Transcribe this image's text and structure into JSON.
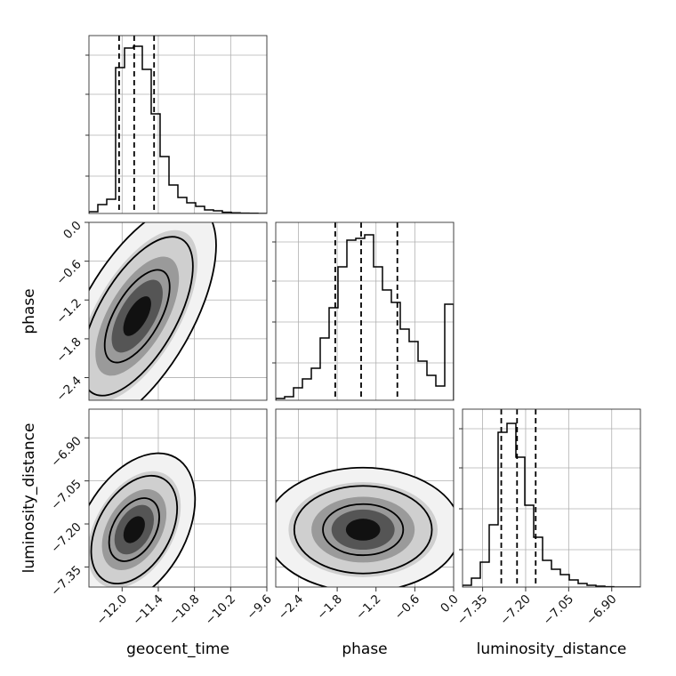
{
  "chart_data": {
    "type": "corner",
    "parameters": [
      "geocent_time",
      "phase",
      "luminosity_distance"
    ],
    "ranges": {
      "geocent_time": [
        -12.55,
        -9.6
      ],
      "phase": [
        -2.75,
        0.0
      ],
      "luminosity_distance": [
        -7.42,
        -6.8
      ]
    },
    "ticks": {
      "geocent_time": [
        -12.0,
        -11.4,
        -10.8,
        -10.2,
        -9.6
      ],
      "phase": [
        -2.4,
        -1.8,
        -1.2,
        -0.6,
        0.0
      ],
      "luminosity_distance": [
        -7.35,
        -7.2,
        -7.05,
        -6.9
      ]
    },
    "tick_labels": {
      "geocent_time": [
        "−12.0",
        "−11.4",
        "−10.8",
        "−10.2",
        "−9.6"
      ],
      "phase": [
        "−2.4",
        "−1.8",
        "−1.2",
        "−0.6",
        "0.0"
      ],
      "luminosity_distance": [
        "−7.35",
        "−7.20",
        "−7.05",
        "−6.90"
      ]
    },
    "quantiles": {
      "geocent_time": [
        -12.05,
        -11.8,
        -11.47
      ],
      "phase": [
        -1.83,
        -1.43,
        -0.87
      ],
      "luminosity_distance": [
        -7.285,
        -7.23,
        -7.165
      ]
    },
    "histograms": {
      "geocent_time": [
        0.01,
        0.05,
        0.08,
        0.82,
        0.93,
        0.94,
        0.81,
        0.56,
        0.32,
        0.16,
        0.09,
        0.06,
        0.04,
        0.02,
        0.015,
        0.007,
        0.004,
        0.002,
        0.001,
        0.0
      ],
      "phase": [
        0.01,
        0.02,
        0.07,
        0.12,
        0.18,
        0.35,
        0.52,
        0.75,
        0.9,
        0.91,
        0.93,
        0.75,
        0.62,
        0.55,
        0.4,
        0.33,
        0.22,
        0.14,
        0.08,
        0.54
      ],
      "luminosity_distance": [
        0.01,
        0.05,
        0.14,
        0.35,
        0.87,
        0.92,
        0.73,
        0.46,
        0.28,
        0.15,
        0.1,
        0.07,
        0.04,
        0.02,
        0.01,
        0.005,
        0.002,
        0.0,
        0.0,
        0.0
      ]
    },
    "pairs": [
      {
        "x": "geocent_time",
        "y": "phase",
        "mean": [
          -11.75,
          -1.45
        ],
        "sd": [
          0.3,
          0.4
        ],
        "rho": 0.72
      },
      {
        "x": "geocent_time",
        "y": "luminosity_distance",
        "mean": [
          -11.8,
          -7.22
        ],
        "sd": [
          0.28,
          0.06
        ],
        "rho": 0.7
      },
      {
        "x": "phase",
        "y": "luminosity_distance",
        "mean": [
          -1.4,
          -7.22
        ],
        "sd": [
          0.45,
          0.06
        ],
        "rho": 0.1
      }
    ],
    "axis_labels": {
      "x": [
        "geocent_time",
        "phase",
        "luminosity_distance"
      ],
      "y": [
        "phase",
        "luminosity_distance"
      ]
    },
    "grid": true
  }
}
